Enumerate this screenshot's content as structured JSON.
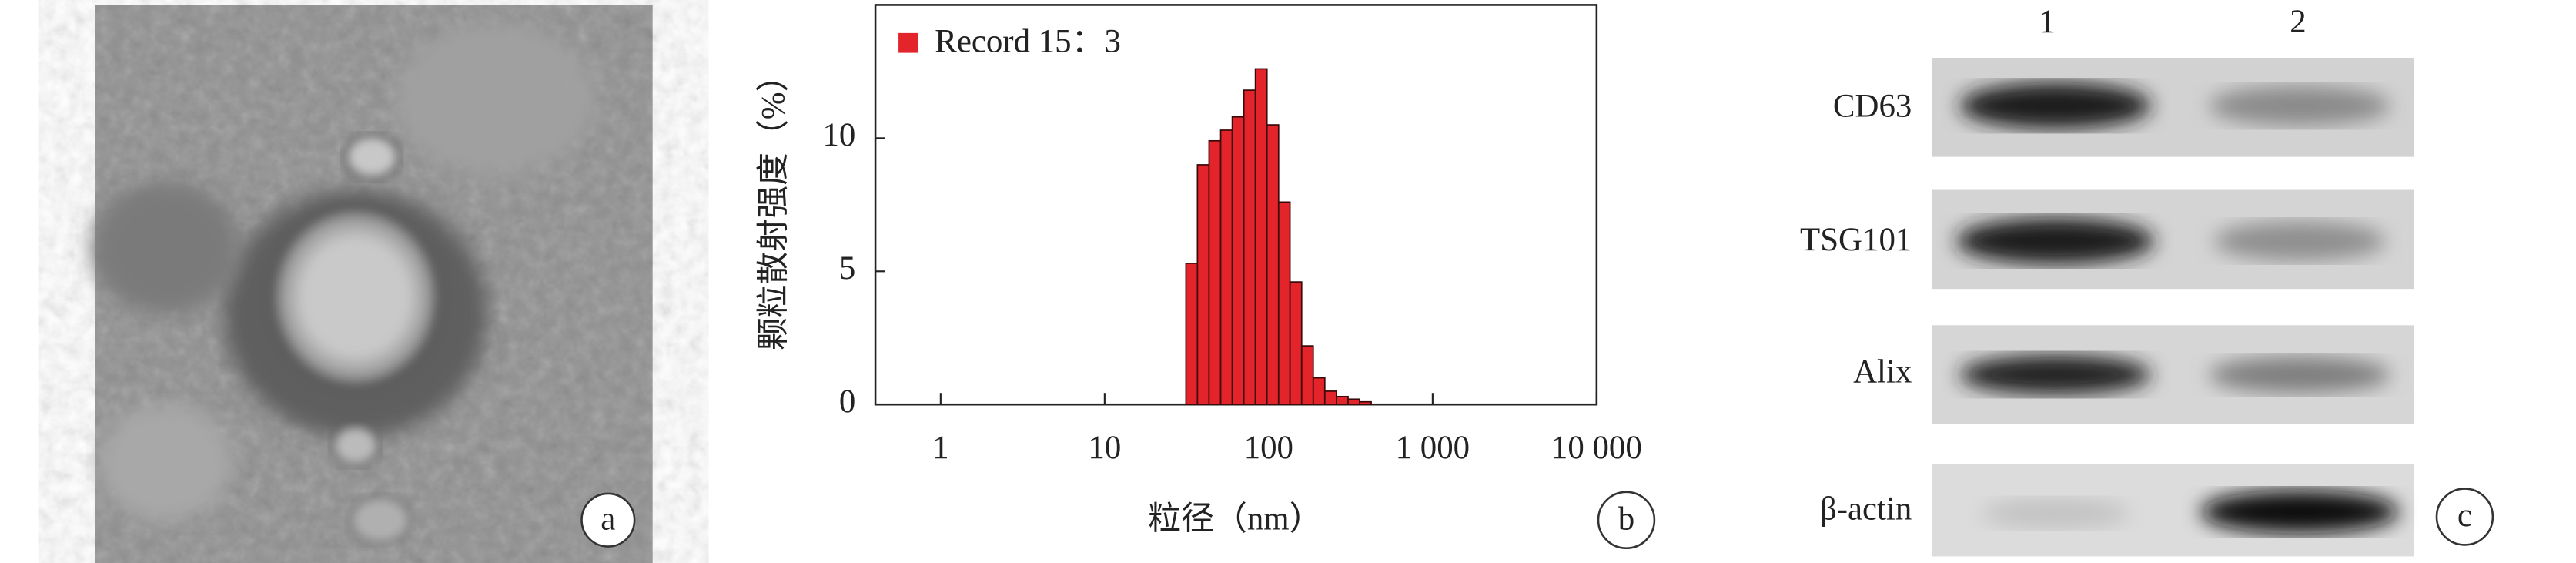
{
  "chart_data": {
    "type": "histogram",
    "xlabel": "粒径（nm）",
    "ylabel": "颗粒散射强度（%）",
    "bins": [
      31.3,
      36.8,
      43.3,
      51,
      60,
      70.6,
      83,
      97.7,
      115,
      135,
      159,
      187,
      220,
      259,
      305,
      359,
      422
    ],
    "series": [
      {
        "name": "Record 15：3",
        "color": "#e3242b",
        "values": [
          5.3,
          9.0,
          9.9,
          10.3,
          10.8,
          11.8,
          12.6,
          10.5,
          7.6,
          4.6,
          2.2,
          1.0,
          0.5,
          0.3,
          0.2,
          0.1
        ]
      }
    ],
    "xscale": "log",
    "xlim": [
      0.4,
      10000
    ],
    "xticks": [
      1,
      10,
      100,
      {
        "value": 1000,
        "label": "1 000"
      },
      {
        "value": 10000,
        "label": "10 000"
      }
    ],
    "ylim": [
      0,
      15
    ],
    "yticks": [
      0,
      5,
      10
    ],
    "legend": "upper left"
  },
  "panel_labels": [
    "a",
    "b",
    "c"
  ],
  "blot": {
    "lanes": [
      "1",
      "2"
    ],
    "rows": [
      "CD63",
      "TSG101",
      "Alix",
      "β-actin"
    ]
  }
}
